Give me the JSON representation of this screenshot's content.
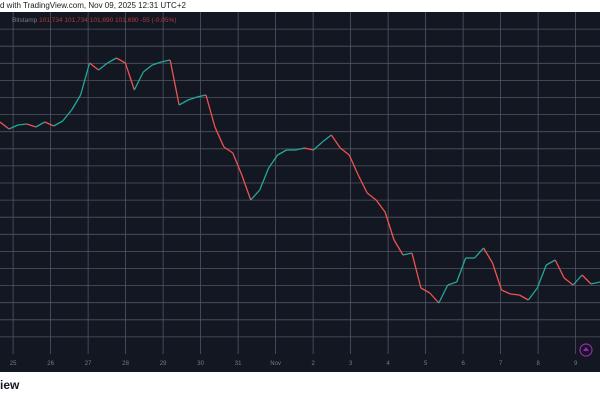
{
  "header": {
    "caption": "d with TradingView.com, Nov 09, 2025 12:31 UTC+2"
  },
  "ohlc": {
    "symbol": "Bitstamp",
    "open": "101,734",
    "high": "101,734",
    "low": "101,690",
    "close": "101,690",
    "change": "-55 (-0.05%)"
  },
  "footer": {
    "brand": "iew"
  },
  "colors": {
    "background": "#131722",
    "grid": "#505564",
    "up": "#26a69a",
    "down": "#ef5350",
    "logo": "#9c27b0"
  },
  "chart_data": {
    "type": "line",
    "title": "",
    "xlabel": "",
    "ylabel": "",
    "x_ticks": [
      "25",
      "26",
      "27",
      "28",
      "29",
      "30",
      "31",
      "Nov",
      "2",
      "3",
      "4",
      "5",
      "6",
      "7",
      "8",
      "9"
    ],
    "y_gridlines": 20,
    "grid": true,
    "series": [
      {
        "values": [
          122,
          129,
          125,
          124,
          127,
          122,
          126,
          121,
          110,
          95,
          63,
          70,
          63,
          58,
          63,
          90,
          72,
          65,
          62,
          60,
          105,
          100,
          97,
          95,
          127,
          147,
          153,
          175,
          200,
          190,
          168,
          155,
          150,
          150,
          148,
          150,
          142,
          135,
          148,
          155,
          175,
          193,
          200,
          212,
          240,
          255,
          253,
          288,
          293,
          303,
          285,
          282,
          258,
          258,
          248,
          263,
          290,
          294,
          295,
          300,
          288,
          265,
          260,
          278,
          285,
          275,
          284,
          282
        ]
      }
    ],
    "note_series_scale": "values are price levels read off the plot, higher number = lower price"
  }
}
